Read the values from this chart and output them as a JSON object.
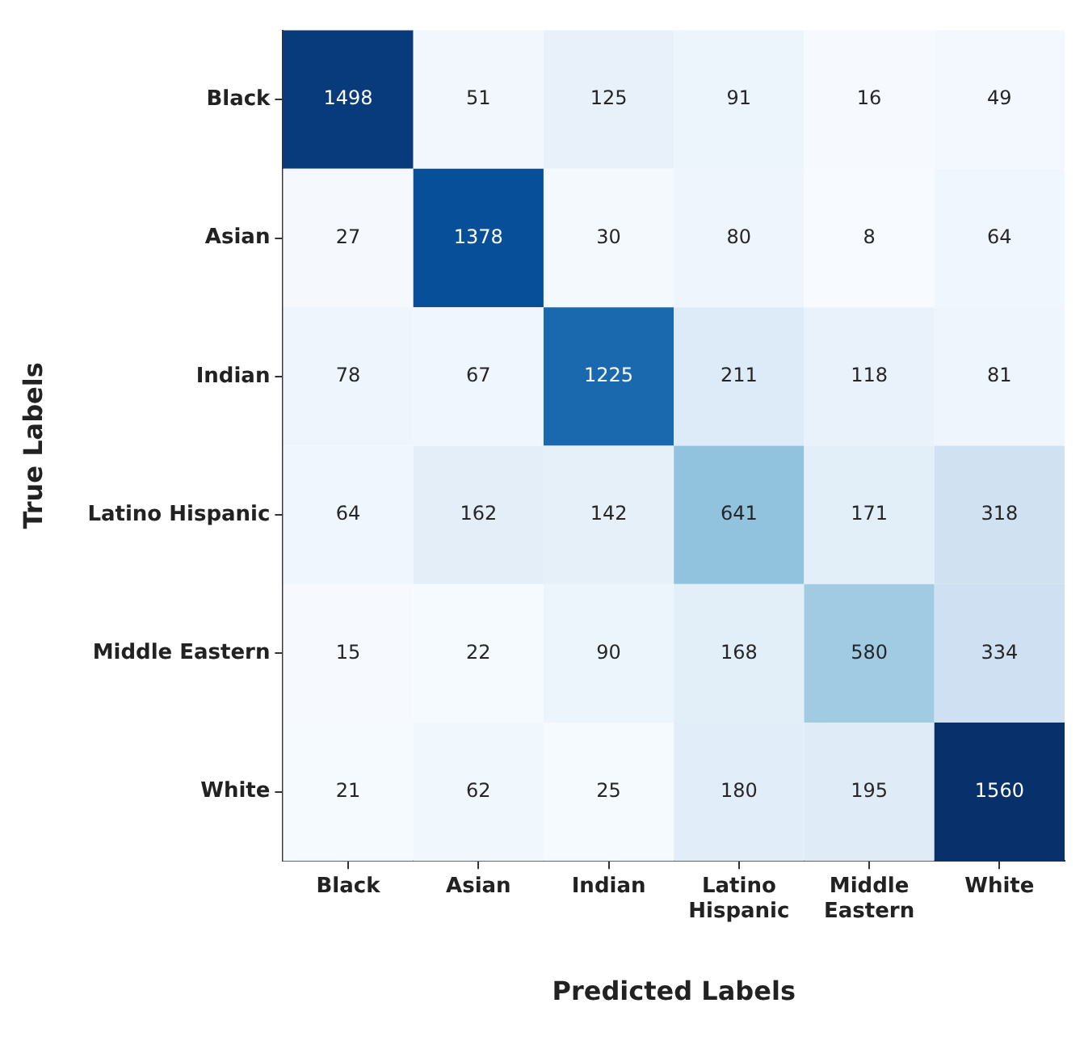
{
  "chart_data": {
    "type": "heatmap",
    "xlabel": "Predicted Labels",
    "ylabel": "True Labels",
    "categories": [
      "Black",
      "Asian",
      "Indian",
      "Latino Hispanic",
      "Middle Eastern",
      "White"
    ],
    "y_categories": [
      "Black",
      "Asian",
      "Indian",
      "Latino Hispanic",
      "Middle Eastern",
      "White"
    ],
    "cells": [
      [
        1498,
        51,
        125,
        91,
        16,
        49
      ],
      [
        27,
        1378,
        30,
        80,
        8,
        64
      ],
      [
        78,
        67,
        1225,
        211,
        118,
        81
      ],
      [
        64,
        162,
        142,
        641,
        171,
        318
      ],
      [
        15,
        22,
        90,
        168,
        580,
        334
      ],
      [
        21,
        62,
        25,
        180,
        195,
        1560
      ]
    ],
    "grid": false,
    "data_labels": true
  }
}
